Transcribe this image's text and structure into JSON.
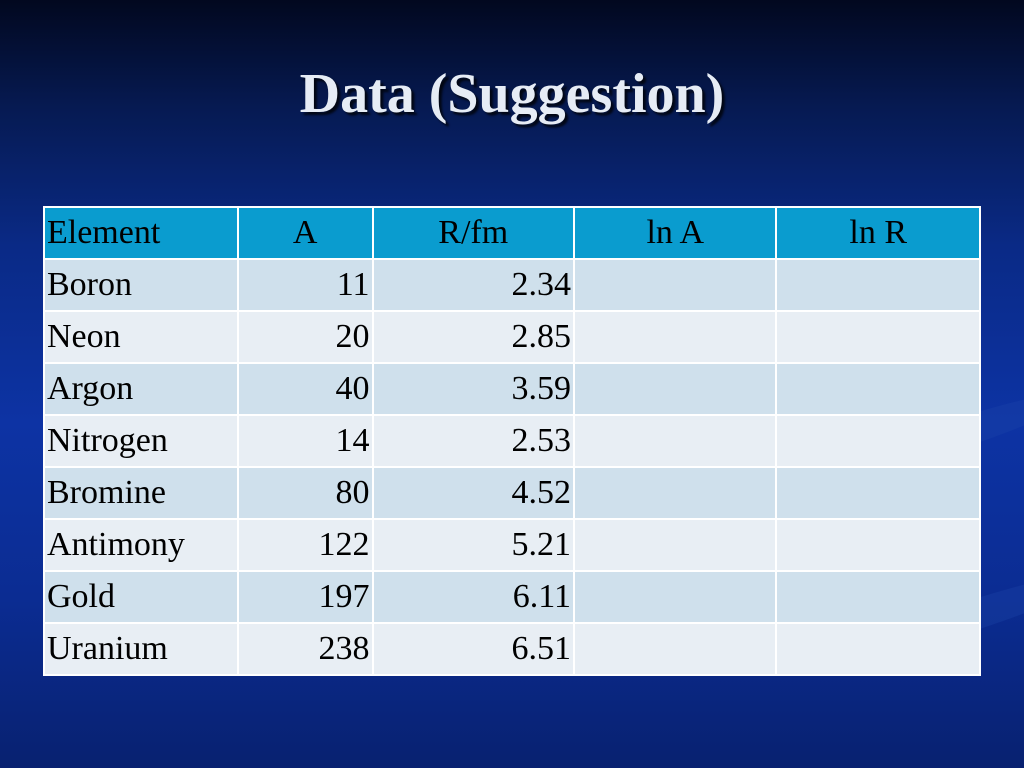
{
  "title": "Data (Suggestion)",
  "table": {
    "headers": [
      "Element",
      "A",
      "R/fm",
      "ln A",
      "ln R"
    ],
    "rows": [
      [
        "Boron",
        "11",
        "2.34",
        "",
        ""
      ],
      [
        "Neon",
        "20",
        "2.85",
        "",
        ""
      ],
      [
        "Argon",
        "40",
        "3.59",
        "",
        ""
      ],
      [
        "Nitrogen",
        "14",
        "2.53",
        "",
        ""
      ],
      [
        "Bromine",
        "80",
        "4.52",
        "",
        ""
      ],
      [
        "Antimony",
        "122",
        "5.21",
        "",
        ""
      ],
      [
        "Gold",
        "197",
        "6.11",
        "",
        ""
      ],
      [
        "Uranium",
        "238",
        "6.51",
        "",
        ""
      ]
    ]
  },
  "colors": {
    "header_fill": "#0a9ccf",
    "row_fill_odd": "#cfe0ec",
    "row_fill_even": "#e8eef4",
    "title_text": "#e6ecf5"
  }
}
